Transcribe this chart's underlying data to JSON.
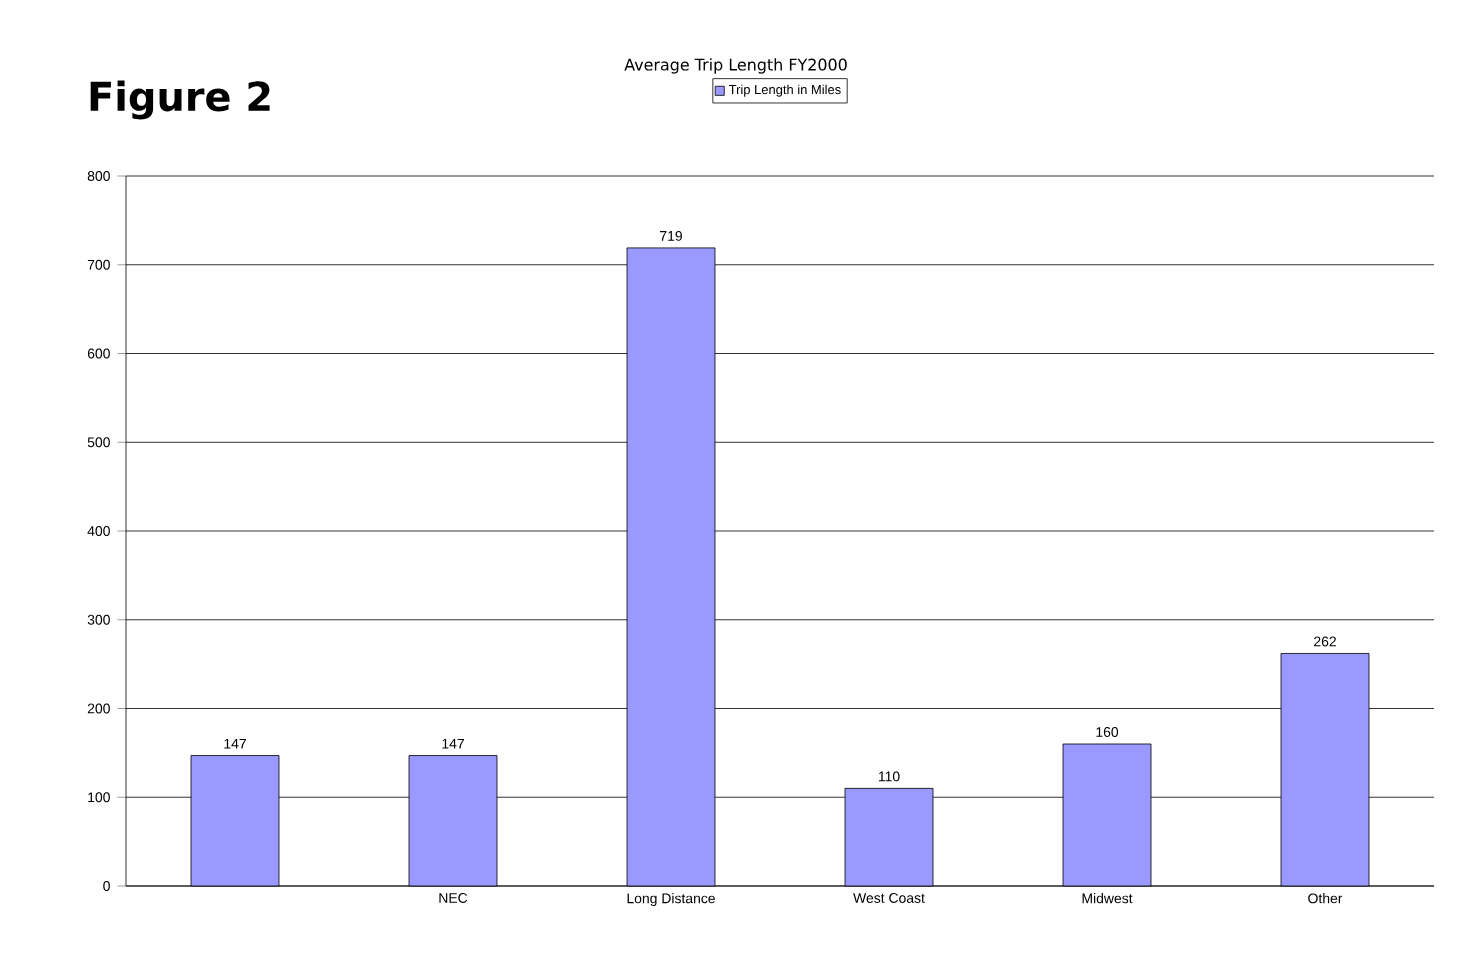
{
  "chart_data": {
    "type": "bar",
    "title": "Figure 2",
    "subtitle": "Average Trip Length FY2000",
    "categories": [
      null,
      "NEC",
      "Long Distance",
      "West Coast",
      "Midwest",
      "Other"
    ],
    "series": [
      {
        "name": "Trip Length in Miles",
        "color": "#9999ff",
        "values": [
          147,
          147,
          719,
          110,
          160,
          262
        ]
      }
    ],
    "ylim": [
      0,
      800
    ],
    "yticks": [
      0,
      100,
      200,
      300,
      400,
      500,
      600,
      700,
      800
    ],
    "grid": "y",
    "legend": "top",
    "data_labels": true
  }
}
